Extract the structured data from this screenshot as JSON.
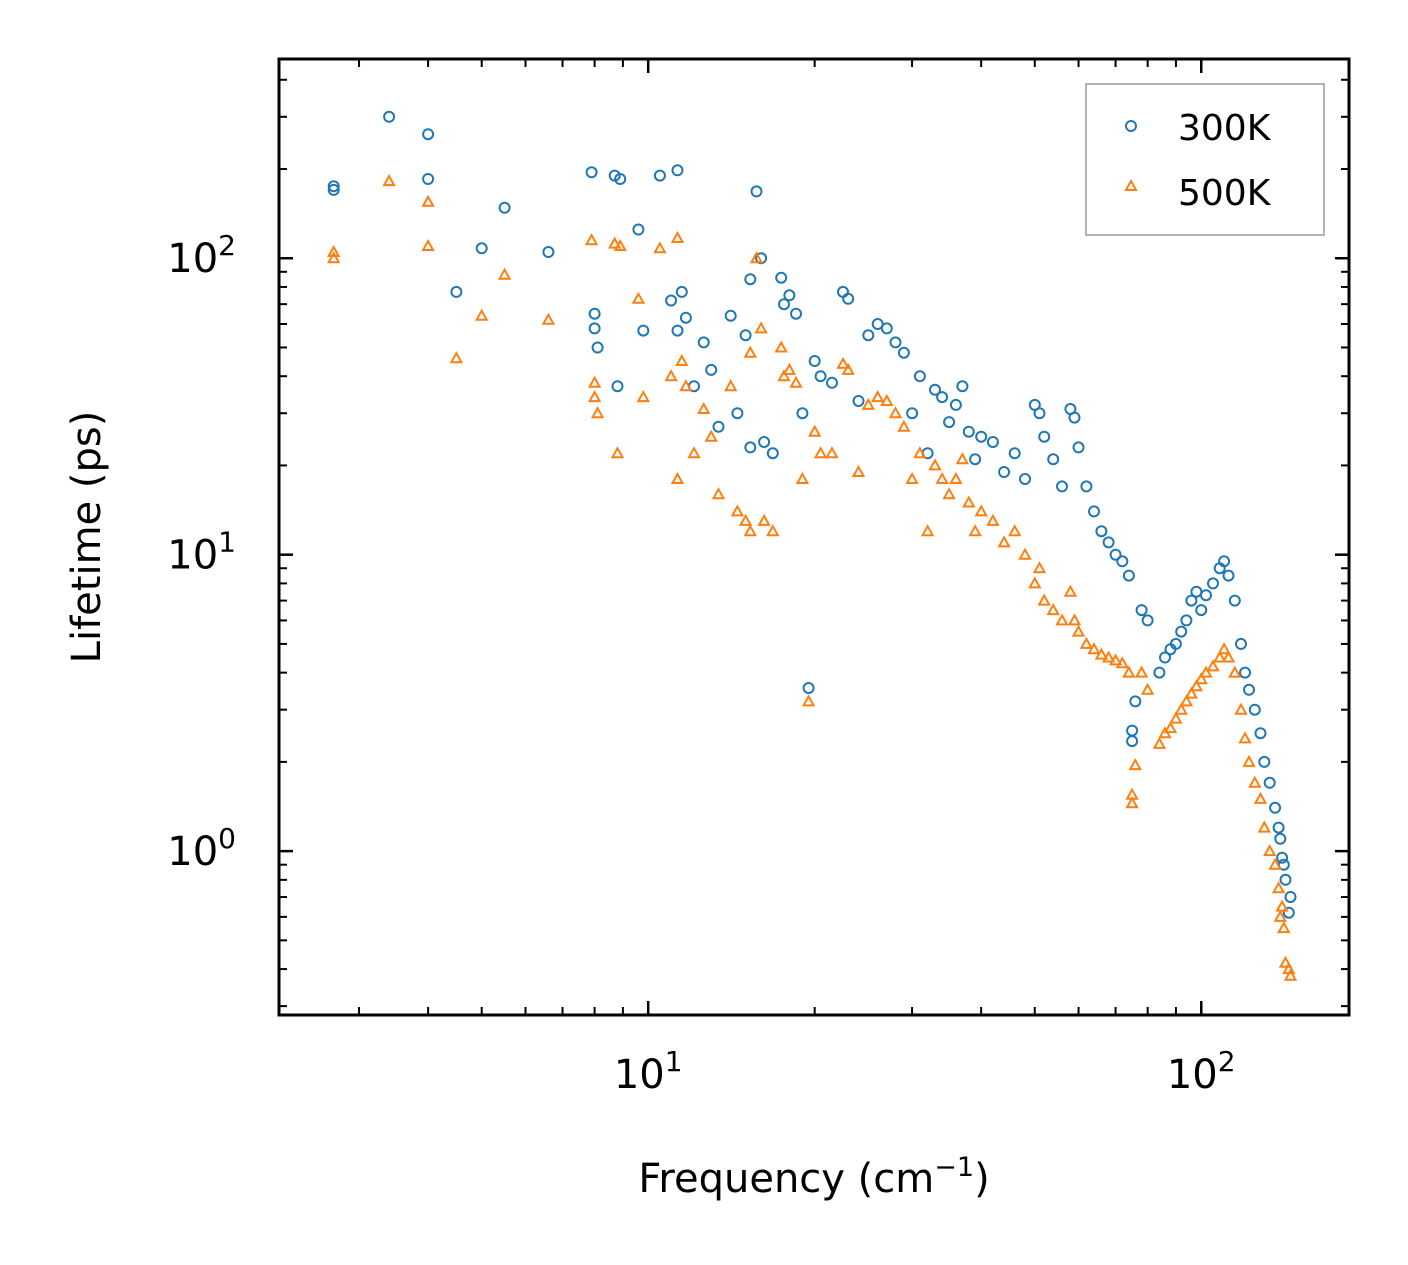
{
  "chart_data": {
    "type": "scatter",
    "title": "",
    "xlabel": "Frequency (cm",
    "xlabel_sup": "−1",
    "xlabel_end": ")",
    "ylabel": "Lifetime (ps)",
    "xscale": "log",
    "yscale": "log",
    "xlim": [
      2.15,
      185
    ],
    "ylim": [
      0.28,
      470
    ],
    "x_ticks": [
      {
        "value": 10,
        "base": "10",
        "exp": "1"
      },
      {
        "value": 100,
        "base": "10",
        "exp": "2"
      }
    ],
    "y_ticks": [
      {
        "value": 1,
        "base": "10",
        "exp": "0"
      },
      {
        "value": 10,
        "base": "10",
        "exp": "1"
      },
      {
        "value": 100,
        "base": "10",
        "exp": "2"
      }
    ],
    "legend_position": "top-right",
    "series": [
      {
        "name": "300K",
        "color": "#1f77b4",
        "marker": "circle",
        "points": [
          [
            2.7,
            175
          ],
          [
            2.7,
            170
          ],
          [
            3.4,
            300
          ],
          [
            4.0,
            262
          ],
          [
            4.0,
            185
          ],
          [
            4.5,
            77
          ],
          [
            5.0,
            108
          ],
          [
            5.5,
            148
          ],
          [
            6.6,
            105
          ],
          [
            7.9,
            195
          ],
          [
            8.0,
            65
          ],
          [
            8.0,
            58
          ],
          [
            8.1,
            50
          ],
          [
            8.7,
            190
          ],
          [
            8.9,
            185
          ],
          [
            8.8,
            37
          ],
          [
            9.6,
            125
          ],
          [
            9.8,
            57
          ],
          [
            10.5,
            190
          ],
          [
            11.0,
            72
          ],
          [
            11.3,
            198
          ],
          [
            11.5,
            77
          ],
          [
            11.7,
            63
          ],
          [
            11.3,
            57
          ],
          [
            12.1,
            37
          ],
          [
            12.6,
            52
          ],
          [
            13.0,
            42
          ],
          [
            13.4,
            27
          ],
          [
            14.1,
            64
          ],
          [
            14.5,
            30
          ],
          [
            15.0,
            55
          ],
          [
            15.3,
            85
          ],
          [
            15.7,
            168
          ],
          [
            16.0,
            100
          ],
          [
            15.3,
            23
          ],
          [
            16.2,
            24
          ],
          [
            16.8,
            22
          ],
          [
            17.4,
            86
          ],
          [
            17.6,
            70
          ],
          [
            18.0,
            75
          ],
          [
            18.5,
            65
          ],
          [
            19.0,
            30
          ],
          [
            19.5,
            3.55
          ],
          [
            20.0,
            45
          ],
          [
            20.5,
            40
          ],
          [
            21.5,
            38
          ],
          [
            22.5,
            77
          ],
          [
            23.0,
            73
          ],
          [
            24.0,
            33
          ],
          [
            25.0,
            55
          ],
          [
            26.0,
            60
          ],
          [
            27.0,
            58
          ],
          [
            28.0,
            52
          ],
          [
            29.0,
            48
          ],
          [
            30.0,
            30
          ],
          [
            31.0,
            40
          ],
          [
            32.0,
            22
          ],
          [
            33.0,
            36
          ],
          [
            34.0,
            34
          ],
          [
            35.0,
            28
          ],
          [
            36.0,
            32
          ],
          [
            37.0,
            37
          ],
          [
            38.0,
            26
          ],
          [
            39.0,
            21
          ],
          [
            40.0,
            25
          ],
          [
            42.0,
            24
          ],
          [
            44.0,
            19
          ],
          [
            46.0,
            22
          ],
          [
            48.0,
            18
          ],
          [
            50.0,
            32
          ],
          [
            51.0,
            30
          ],
          [
            52.0,
            25
          ],
          [
            54.0,
            21
          ],
          [
            56.0,
            17
          ],
          [
            58.0,
            31
          ],
          [
            59.0,
            29
          ],
          [
            60.0,
            23
          ],
          [
            62.0,
            17
          ],
          [
            64.0,
            14
          ],
          [
            66.0,
            12
          ],
          [
            68.0,
            11
          ],
          [
            70.0,
            10
          ],
          [
            72.0,
            9.5
          ],
          [
            74.0,
            8.5
          ],
          [
            75.0,
            2.55
          ],
          [
            75.0,
            2.35
          ],
          [
            76.0,
            3.2
          ],
          [
            78.0,
            6.5
          ],
          [
            80.0,
            6.0
          ],
          [
            84.0,
            4.0
          ],
          [
            86.0,
            4.5
          ],
          [
            88.0,
            4.8
          ],
          [
            90.0,
            5.0
          ],
          [
            92.0,
            5.5
          ],
          [
            94.0,
            6.0
          ],
          [
            96.0,
            7.0
          ],
          [
            98.0,
            7.5
          ],
          [
            100.0,
            6.5
          ],
          [
            102.0,
            7.3
          ],
          [
            105.0,
            8.0
          ],
          [
            108.0,
            9.0
          ],
          [
            110.0,
            9.5
          ],
          [
            112.0,
            8.5
          ],
          [
            115.0,
            7.0
          ],
          [
            118.0,
            5.0
          ],
          [
            120.0,
            4.0
          ],
          [
            122.0,
            3.5
          ],
          [
            125.0,
            3.0
          ],
          [
            128.0,
            2.5
          ],
          [
            130.0,
            2.0
          ],
          [
            133.0,
            1.7
          ],
          [
            136.0,
            1.4
          ],
          [
            138.0,
            1.2
          ],
          [
            140.0,
            0.95
          ],
          [
            142.0,
            0.8
          ],
          [
            145.0,
            0.7
          ],
          [
            144.0,
            0.62
          ],
          [
            141.0,
            0.9
          ],
          [
            139.0,
            1.1
          ]
        ]
      },
      {
        "name": "500K",
        "color": "#ff7f0e",
        "marker": "triangle",
        "points": [
          [
            2.7,
            105
          ],
          [
            2.7,
            100
          ],
          [
            3.4,
            182
          ],
          [
            4.0,
            155
          ],
          [
            4.0,
            110
          ],
          [
            4.5,
            46
          ],
          [
            5.0,
            64
          ],
          [
            5.5,
            88
          ],
          [
            6.6,
            62
          ],
          [
            7.9,
            115
          ],
          [
            8.0,
            38
          ],
          [
            8.0,
            34
          ],
          [
            8.1,
            30
          ],
          [
            8.7,
            112
          ],
          [
            8.9,
            110
          ],
          [
            8.8,
            22
          ],
          [
            9.6,
            73
          ],
          [
            9.8,
            34
          ],
          [
            10.5,
            108
          ],
          [
            11.0,
            40
          ],
          [
            11.3,
            117
          ],
          [
            11.5,
            45
          ],
          [
            11.7,
            37
          ],
          [
            11.3,
            18
          ],
          [
            12.1,
            22
          ],
          [
            12.6,
            31
          ],
          [
            13.0,
            25
          ],
          [
            13.4,
            16
          ],
          [
            14.1,
            37
          ],
          [
            14.5,
            14
          ],
          [
            15.0,
            13
          ],
          [
            15.3,
            48
          ],
          [
            15.7,
            100
          ],
          [
            16.0,
            58
          ],
          [
            15.3,
            12
          ],
          [
            16.2,
            13
          ],
          [
            16.8,
            12
          ],
          [
            17.4,
            50
          ],
          [
            17.6,
            40
          ],
          [
            18.0,
            42
          ],
          [
            18.5,
            38
          ],
          [
            19.0,
            18
          ],
          [
            19.5,
            3.2
          ],
          [
            20.0,
            26
          ],
          [
            20.5,
            22
          ],
          [
            21.5,
            22
          ],
          [
            22.5,
            44
          ],
          [
            23.0,
            42
          ],
          [
            24.0,
            19
          ],
          [
            25.0,
            32
          ],
          [
            26.0,
            34
          ],
          [
            27.0,
            33
          ],
          [
            28.0,
            30
          ],
          [
            29.0,
            27
          ],
          [
            30.0,
            18
          ],
          [
            31.0,
            22
          ],
          [
            32.0,
            12
          ],
          [
            33.0,
            20
          ],
          [
            34.0,
            18
          ],
          [
            35.0,
            16
          ],
          [
            36.0,
            18
          ],
          [
            37.0,
            21
          ],
          [
            38.0,
            15
          ],
          [
            39.0,
            12
          ],
          [
            40.0,
            14
          ],
          [
            42.0,
            13
          ],
          [
            44.0,
            11
          ],
          [
            46.0,
            12
          ],
          [
            48.0,
            10
          ],
          [
            50.0,
            8
          ],
          [
            51.0,
            9
          ],
          [
            52.0,
            7
          ],
          [
            54.0,
            6.5
          ],
          [
            56.0,
            6
          ],
          [
            58.0,
            7.5
          ],
          [
            59.0,
            6
          ],
          [
            60.0,
            5.5
          ],
          [
            62.0,
            5
          ],
          [
            64.0,
            4.8
          ],
          [
            66.0,
            4.6
          ],
          [
            68.0,
            4.5
          ],
          [
            70.0,
            4.4
          ],
          [
            72.0,
            4.3
          ],
          [
            74.0,
            4.0
          ],
          [
            75.0,
            1.55
          ],
          [
            75.0,
            1.45
          ],
          [
            76.0,
            1.95
          ],
          [
            78.0,
            4.0
          ],
          [
            80.0,
            3.5
          ],
          [
            84.0,
            2.3
          ],
          [
            86.0,
            2.5
          ],
          [
            88.0,
            2.6
          ],
          [
            90.0,
            2.8
          ],
          [
            92.0,
            3.0
          ],
          [
            94.0,
            3.2
          ],
          [
            96.0,
            3.4
          ],
          [
            98.0,
            3.6
          ],
          [
            100.0,
            3.8
          ],
          [
            102.0,
            4.0
          ],
          [
            105.0,
            4.2
          ],
          [
            108.0,
            4.5
          ],
          [
            110.0,
            4.8
          ],
          [
            112.0,
            4.5
          ],
          [
            115.0,
            4.0
          ],
          [
            118.0,
            3.0
          ],
          [
            120.0,
            2.4
          ],
          [
            122.0,
            2.0
          ],
          [
            125.0,
            1.7
          ],
          [
            128.0,
            1.5
          ],
          [
            130.0,
            1.2
          ],
          [
            133.0,
            1.0
          ],
          [
            136.0,
            0.9
          ],
          [
            138.0,
            0.75
          ],
          [
            140.0,
            0.65
          ],
          [
            142.0,
            0.42
          ],
          [
            145.0,
            0.38
          ],
          [
            144.0,
            0.4
          ],
          [
            141.0,
            0.55
          ],
          [
            139.0,
            0.6
          ]
        ]
      }
    ]
  }
}
